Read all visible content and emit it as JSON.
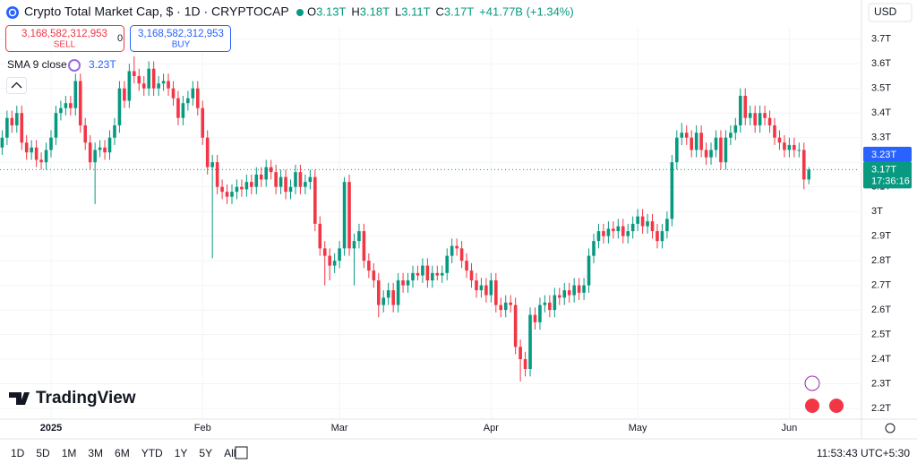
{
  "header": {
    "title": "Crypto Total Market Cap, $ · 1D · CRYPTOCAP",
    "ohlc": [
      {
        "label": "O",
        "value": "3.13T"
      },
      {
        "label": "H",
        "value": "3.18T"
      },
      {
        "label": "L",
        "value": "3.11T"
      },
      {
        "label": "C",
        "value": "3.17T"
      }
    ],
    "change": "+41.77B (+1.34%)"
  },
  "trade": {
    "sell_price": "3,168,582,312,953",
    "sell": "SELL",
    "spread": "0",
    "buy_price": "3,168,582,312,953",
    "buy": "BUY"
  },
  "indicator": {
    "name": "SMA 9 close",
    "value": "3.23T"
  },
  "currency": "USD",
  "brand": "TradingView",
  "toolbar": {
    "ranges": [
      "1D",
      "5D",
      "1M",
      "3M",
      "6M",
      "YTD",
      "1Y",
      "5Y",
      "All"
    ],
    "clock": "11:53:43 UTC+5:30"
  },
  "chart_data": {
    "type": "candlestick",
    "up_color": "#089981",
    "down_color": "#f23645",
    "grid": true,
    "ylim": [
      2.16,
      3.75
    ],
    "xlim": [
      -0.44,
      175.4
    ],
    "yticks": [
      {
        "value": 3.7,
        "label": "3.7T"
      },
      {
        "value": 3.6,
        "label": "3.6T"
      },
      {
        "value": 3.5,
        "label": "3.5T"
      },
      {
        "value": 3.4,
        "label": "3.4T"
      },
      {
        "value": 3.3,
        "label": "3.3T"
      },
      {
        "value": 3.2,
        "label": "3.2T"
      },
      {
        "value": 3.1,
        "label": "3.1T"
      },
      {
        "value": 3,
        "label": "3T"
      },
      {
        "value": 2.9,
        "label": "2.9T"
      },
      {
        "value": 2.8,
        "label": "2.8T"
      },
      {
        "value": 2.7,
        "label": "2.7T"
      },
      {
        "value": 2.6,
        "label": "2.6T"
      },
      {
        "value": 2.5,
        "label": "2.5T"
      },
      {
        "value": 2.4,
        "label": "2.4T"
      },
      {
        "value": 2.3,
        "label": "2.3T"
      },
      {
        "value": 2.2,
        "label": "2.2T"
      }
    ],
    "xticks": [
      {
        "value": 10,
        "label": "2025"
      },
      {
        "value": 41,
        "label": "Feb"
      },
      {
        "value": 69,
        "label": "Mar"
      },
      {
        "value": 100,
        "label": "Apr"
      },
      {
        "value": 130,
        "label": "May"
      },
      {
        "value": 161,
        "label": "Jun"
      }
    ],
    "last_price": {
      "value": 3.17,
      "label": "3.17T"
    },
    "countdown": "17:36:16",
    "sma_last": {
      "value": 3.23,
      "label": "3.23T"
    },
    "open": [
      3.26,
      3.3,
      3.38,
      3.35,
      3.4,
      3.28,
      3.24,
      3.26,
      3.21,
      3.2,
      3.25,
      3.3,
      3.4,
      3.42,
      3.44,
      3.42,
      3.53,
      3.35,
      3.28,
      3.2,
      3.25,
      3.26,
      3.24,
      3.3,
      3.35,
      3.5,
      3.45,
      3.57,
      3.55,
      3.52,
      3.5,
      3.58,
      3.5,
      3.52,
      3.53,
      3.5,
      3.46,
      3.38,
      3.44,
      3.46,
      3.5,
      3.42,
      3.3,
      3.18,
      3.2,
      3.1,
      3.08,
      3.06,
      3.08,
      3.1,
      3.09,
      3.12,
      3.1,
      3.15,
      3.13,
      3.18,
      3.16,
      3.1,
      3.14,
      3.08,
      3.1,
      3.16,
      3.1,
      3.12,
      3.14,
      2.95,
      2.85,
      2.82,
      2.78,
      2.8,
      2.85,
      3.12,
      2.85,
      2.88,
      2.92,
      2.8,
      2.76,
      2.72,
      2.62,
      2.65,
      2.68,
      2.62,
      2.72,
      2.7,
      2.72,
      2.75,
      2.74,
      2.78,
      2.72,
      2.75,
      2.74,
      2.75,
      2.82,
      2.86,
      2.85,
      2.8,
      2.76,
      2.72,
      2.68,
      2.7,
      2.66,
      2.72,
      2.62,
      2.6,
      2.63,
      2.62,
      2.45,
      2.4,
      2.36,
      2.58,
      2.55,
      2.62,
      2.63,
      2.6,
      2.66,
      2.65,
      2.68,
      2.66,
      2.7,
      2.67,
      2.7,
      2.82,
      2.88,
      2.92,
      2.9,
      2.93,
      2.92,
      2.94,
      2.9,
      2.92,
      2.95,
      2.98,
      2.94,
      2.96,
      2.92,
      2.88,
      2.92,
      2.97,
      3.2,
      3.3,
      3.32,
      3.3,
      3.25,
      3.32,
      3.25,
      3.22,
      3.25,
      3.3,
      3.2,
      3.3,
      3.32,
      3.35,
      3.47,
      3.38,
      3.4,
      3.35,
      3.4,
      3.38,
      3.35,
      3.3,
      3.28,
      3.25,
      3.27,
      3.25,
      3.25,
      3.13
    ],
    "high": [
      3.33,
      3.41,
      3.41,
      3.43,
      3.43,
      3.31,
      3.29,
      3.29,
      3.24,
      3.28,
      3.33,
      3.43,
      3.45,
      3.47,
      3.47,
      3.56,
      3.56,
      3.38,
      3.31,
      3.28,
      3.29,
      3.29,
      3.33,
      3.38,
      3.53,
      3.53,
      3.6,
      3.63,
      3.58,
      3.55,
      3.61,
      3.61,
      3.55,
      3.56,
      3.56,
      3.53,
      3.49,
      3.47,
      3.49,
      3.53,
      3.53,
      3.45,
      3.33,
      3.23,
      3.23,
      3.13,
      3.11,
      3.11,
      3.13,
      3.13,
      3.15,
      3.15,
      3.18,
      3.18,
      3.21,
      3.21,
      3.19,
      3.17,
      3.17,
      3.13,
      3.19,
      3.19,
      3.15,
      3.17,
      3.17,
      2.98,
      2.88,
      2.85,
      2.83,
      2.88,
      3.14,
      3.15,
      2.91,
      2.95,
      2.95,
      2.83,
      2.79,
      2.75,
      2.68,
      2.71,
      2.71,
      2.75,
      2.75,
      2.75,
      2.78,
      2.78,
      2.81,
      2.81,
      2.78,
      2.78,
      2.78,
      2.85,
      2.89,
      2.89,
      2.88,
      2.83,
      2.79,
      2.75,
      2.73,
      2.73,
      2.75,
      2.75,
      2.65,
      2.66,
      2.66,
      2.65,
      2.48,
      2.43,
      2.61,
      2.61,
      2.65,
      2.66,
      2.66,
      2.69,
      2.69,
      2.71,
      2.71,
      2.73,
      2.73,
      2.73,
      2.85,
      2.91,
      2.95,
      2.95,
      2.96,
      2.96,
      2.97,
      2.97,
      2.95,
      2.98,
      3.01,
      3.01,
      2.99,
      2.99,
      2.95,
      2.95,
      3.0,
      3.23,
      3.33,
      3.36,
      3.35,
      3.33,
      3.35,
      3.35,
      3.28,
      3.28,
      3.33,
      3.33,
      3.33,
      3.35,
      3.38,
      3.5,
      3.5,
      3.43,
      3.43,
      3.43,
      3.43,
      3.41,
      3.38,
      3.33,
      3.31,
      3.3,
      3.3,
      3.28,
      3.28,
      3.18
    ],
    "low": [
      3.23,
      3.27,
      3.32,
      3.32,
      3.25,
      3.21,
      3.21,
      3.18,
      3.17,
      3.17,
      3.22,
      3.27,
      3.37,
      3.39,
      3.39,
      3.39,
      3.32,
      3.25,
      3.17,
      3.03,
      3.22,
      3.21,
      3.21,
      3.27,
      3.32,
      3.42,
      3.42,
      3.52,
      3.49,
      3.47,
      3.47,
      3.47,
      3.47,
      3.49,
      3.47,
      3.43,
      3.35,
      3.35,
      3.41,
      3.43,
      3.39,
      3.27,
      3.15,
      2.81,
      3.07,
      3.05,
      3.03,
      3.03,
      3.05,
      3.06,
      3.06,
      3.07,
      3.07,
      3.1,
      3.1,
      3.13,
      3.07,
      3.07,
      3.05,
      3.05,
      3.07,
      3.07,
      3.07,
      3.09,
      2.92,
      2.82,
      2.7,
      2.72,
      2.75,
      2.77,
      2.82,
      2.82,
      2.7,
      2.85,
      2.77,
      2.73,
      2.69,
      2.57,
      2.59,
      2.62,
      2.59,
      2.59,
      2.67,
      2.67,
      2.69,
      2.72,
      2.71,
      2.69,
      2.69,
      2.72,
      2.71,
      2.72,
      2.79,
      2.82,
      2.77,
      2.73,
      2.69,
      2.65,
      2.65,
      2.63,
      2.63,
      2.59,
      2.57,
      2.57,
      2.59,
      2.42,
      2.31,
      2.33,
      2.33,
      2.52,
      2.52,
      2.59,
      2.57,
      2.57,
      2.62,
      2.62,
      2.63,
      2.63,
      2.64,
      2.64,
      2.67,
      2.79,
      2.85,
      2.87,
      2.87,
      2.89,
      2.89,
      2.87,
      2.87,
      2.89,
      2.92,
      2.91,
      2.91,
      2.89,
      2.85,
      2.85,
      2.89,
      2.94,
      3.17,
      3.27,
      3.27,
      3.22,
      3.22,
      3.22,
      3.19,
      3.19,
      3.22,
      3.17,
      3.17,
      3.27,
      3.29,
      3.32,
      3.35,
      3.35,
      3.32,
      3.32,
      3.35,
      3.32,
      3.27,
      3.25,
      3.22,
      3.22,
      3.22,
      3.22,
      3.09,
      3.11
    ],
    "close": [
      3.3,
      3.38,
      3.35,
      3.4,
      3.28,
      3.24,
      3.26,
      3.21,
      3.2,
      3.25,
      3.3,
      3.4,
      3.42,
      3.44,
      3.42,
      3.53,
      3.35,
      3.28,
      3.2,
      3.25,
      3.26,
      3.24,
      3.3,
      3.35,
      3.5,
      3.45,
      3.57,
      3.55,
      3.52,
      3.5,
      3.58,
      3.5,
      3.52,
      3.53,
      3.5,
      3.46,
      3.38,
      3.44,
      3.46,
      3.5,
      3.42,
      3.3,
      3.18,
      3.2,
      3.1,
      3.08,
      3.06,
      3.08,
      3.1,
      3.09,
      3.12,
      3.1,
      3.15,
      3.13,
      3.18,
      3.16,
      3.1,
      3.14,
      3.08,
      3.1,
      3.16,
      3.1,
      3.12,
      3.14,
      2.95,
      2.85,
      2.82,
      2.78,
      2.8,
      2.85,
      3.12,
      2.85,
      2.88,
      2.92,
      2.8,
      2.76,
      2.72,
      2.62,
      2.65,
      2.68,
      2.62,
      2.72,
      2.7,
      2.72,
      2.75,
      2.74,
      2.78,
      2.72,
      2.75,
      2.74,
      2.75,
      2.82,
      2.86,
      2.85,
      2.8,
      2.76,
      2.72,
      2.68,
      2.7,
      2.66,
      2.72,
      2.62,
      2.6,
      2.63,
      2.62,
      2.45,
      2.4,
      2.36,
      2.58,
      2.55,
      2.62,
      2.63,
      2.6,
      2.66,
      2.65,
      2.68,
      2.66,
      2.7,
      2.67,
      2.7,
      2.82,
      2.88,
      2.92,
      2.9,
      2.93,
      2.92,
      2.94,
      2.9,
      2.92,
      2.95,
      2.98,
      2.94,
      2.96,
      2.92,
      2.88,
      2.92,
      2.97,
      3.2,
      3.3,
      3.32,
      3.3,
      3.25,
      3.32,
      3.25,
      3.22,
      3.25,
      3.3,
      3.2,
      3.3,
      3.32,
      3.35,
      3.47,
      3.38,
      3.4,
      3.35,
      3.4,
      3.38,
      3.35,
      3.3,
      3.28,
      3.25,
      3.27,
      3.25,
      3.25,
      3.13,
      3.17
    ]
  }
}
